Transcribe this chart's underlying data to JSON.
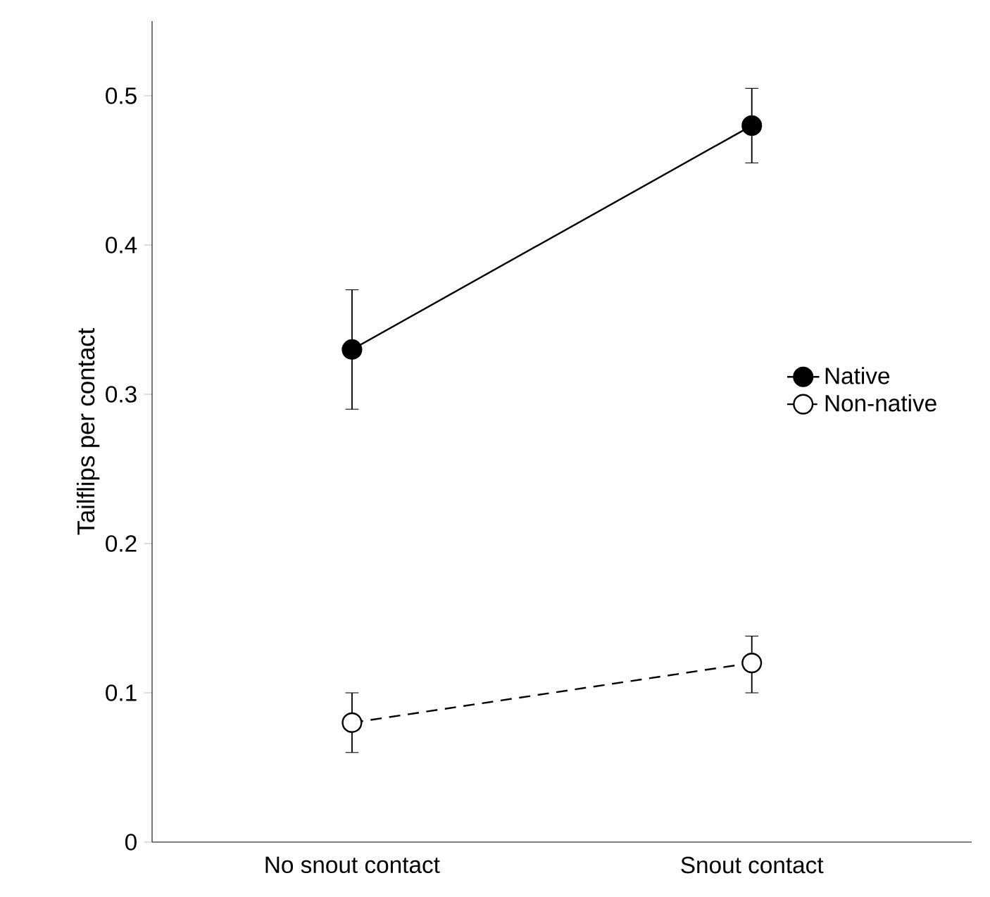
{
  "chart_data": {
    "type": "line",
    "ylabel": "Tailflips per contact",
    "categories": [
      "No snout contact",
      "Snout contact"
    ],
    "series": [
      {
        "name": "Native",
        "color": "#000000",
        "values": [
          0.33,
          0.48
        ],
        "errors": [
          [
            0.29,
            0.37
          ],
          [
            0.455,
            0.505
          ]
        ],
        "line_style": "solid"
      },
      {
        "name": "Non-native",
        "color": "#000000",
        "values": [
          0.08,
          0.12
        ],
        "errors": [
          [
            0.06,
            0.1
          ],
          [
            0.1,
            0.138
          ]
        ],
        "line_style": "dashed"
      }
    ],
    "ylim": [
      0,
      0.55
    ],
    "yticks": [
      0,
      0.1,
      0.2,
      0.3,
      0.4,
      0.5
    ],
    "grid": false,
    "legend": "right",
    "marker": "circle"
  }
}
